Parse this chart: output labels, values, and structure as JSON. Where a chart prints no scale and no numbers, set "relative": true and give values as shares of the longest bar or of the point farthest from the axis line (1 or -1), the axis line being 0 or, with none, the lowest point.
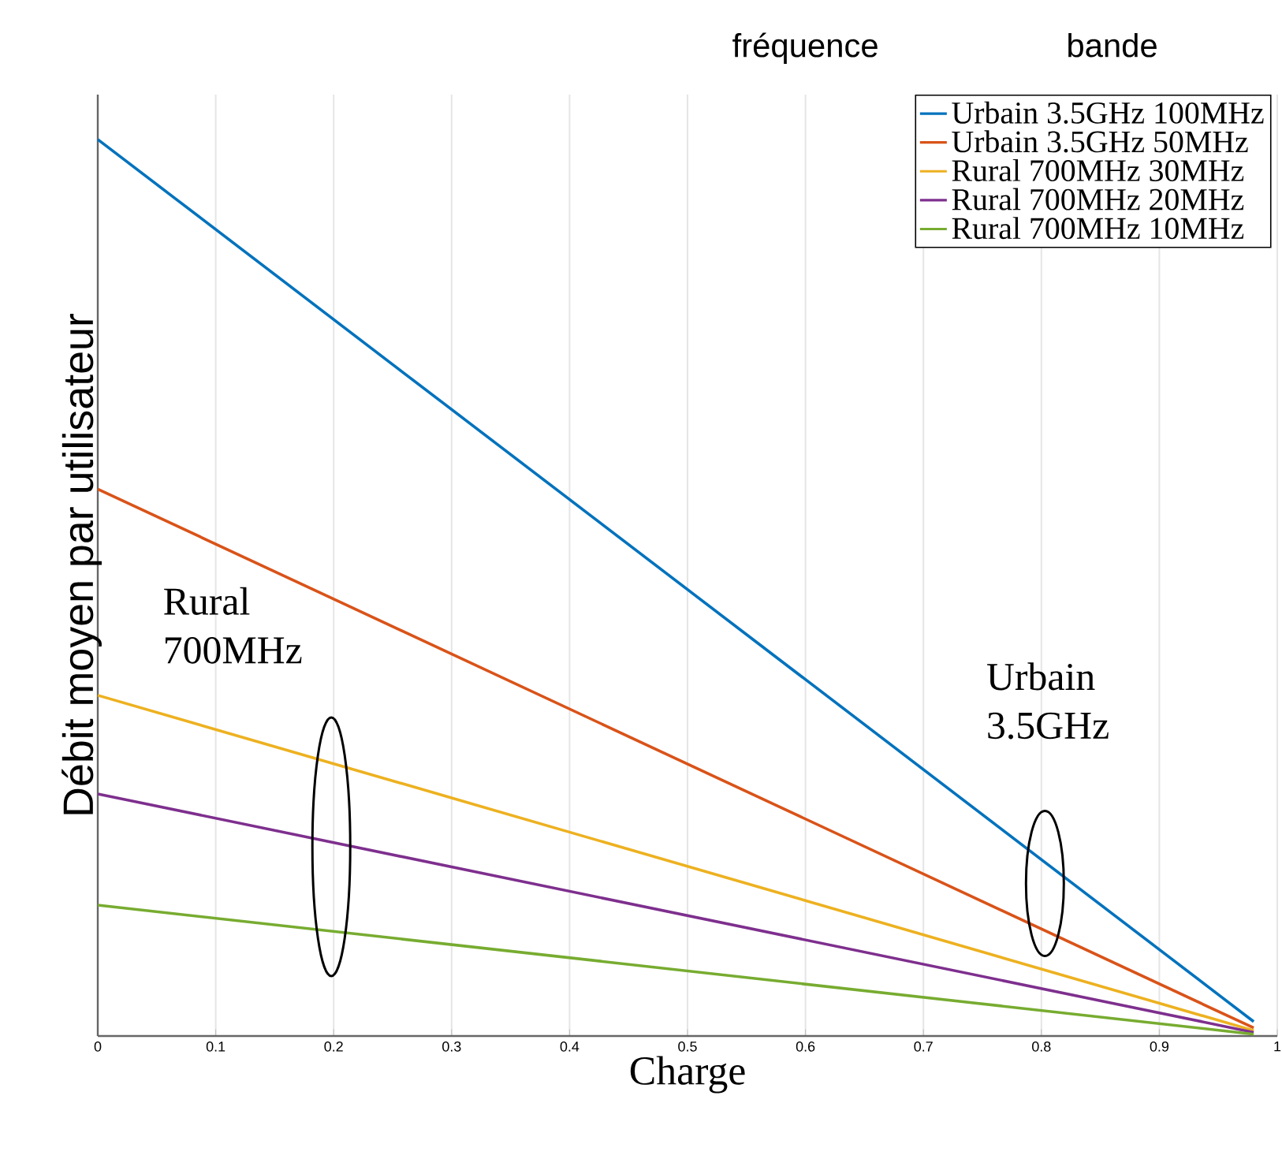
{
  "chart_data": {
    "type": "line",
    "relative": true,
    "xlabel": "Charge",
    "ylabel": "Débit moyen par utilisateur",
    "xlim": [
      0,
      1
    ],
    "xticks": [
      0,
      0.1,
      0.2,
      0.3,
      0.4,
      0.5,
      0.6,
      0.7,
      0.8,
      0.9,
      1
    ],
    "tick_labels": "x",
    "grid": "x",
    "legend": "top right",
    "x": [
      0,
      0.98
    ],
    "series": [
      {
        "name": "Urbain 3.5GHz 100MHz",
        "color": "#0072bd",
        "values": [
          1,
          0.016
        ]
      },
      {
        "name": "Urbain 3.5GHz 50MHz",
        "color": "#d95319",
        "values": [
          0.61,
          0.009
        ]
      },
      {
        "name": "Rural 700MHz 30MHz",
        "color": "#edb120",
        "values": [
          0.38,
          0.006
        ]
      },
      {
        "name": "Rural 700MHz 20MHz",
        "color": "#7e2f8e",
        "values": [
          0.27,
          0.004
        ]
      },
      {
        "name": "Rural 700MHz 10MHz",
        "color": "#77ac30",
        "values": [
          0.146,
          0.002
        ]
      }
    ],
    "annotations": [
      "fréquence",
      "bande",
      "Rural 700MHz",
      "Urbain 3.5GHz"
    ]
  }
}
